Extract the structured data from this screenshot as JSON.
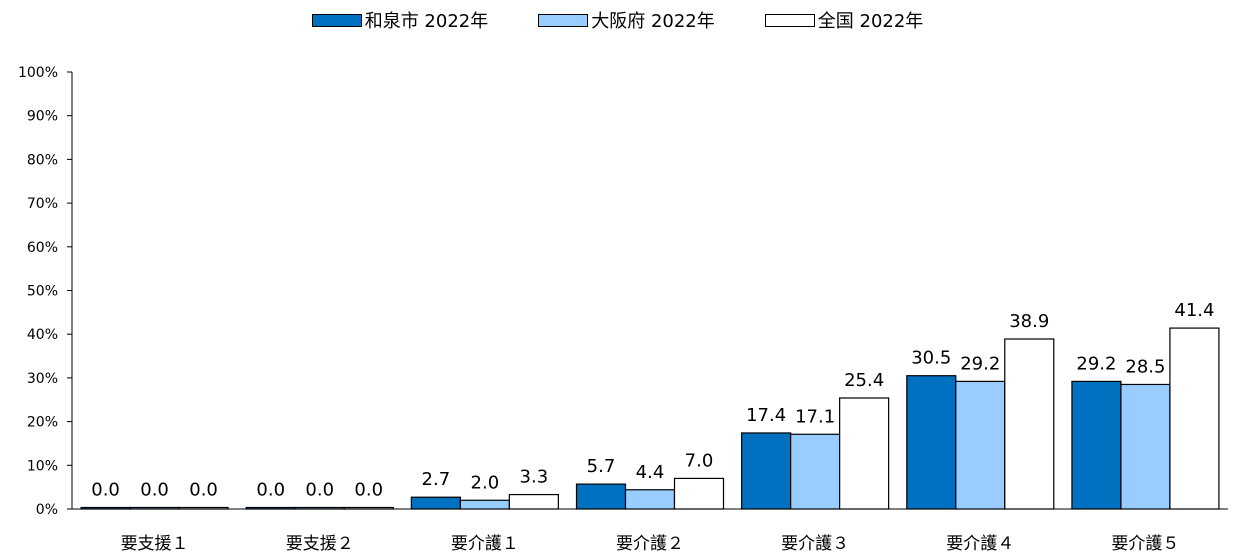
{
  "chart_data": {
    "type": "bar",
    "title": "",
    "xlabel": "",
    "ylabel": "",
    "ylim": [
      0,
      100
    ],
    "yticks": [
      "0%",
      "10%",
      "20%",
      "30%",
      "40%",
      "50%",
      "60%",
      "70%",
      "80%",
      "90%",
      "100%"
    ],
    "categories": [
      "要支援１",
      "要支援２",
      "要介護１",
      "要介護２",
      "要介護３",
      "要介護４",
      "要介護５"
    ],
    "legend_position": "top-center",
    "grid": false,
    "series": [
      {
        "name": "和泉市 2022年",
        "color": "#0070c0",
        "values": [
          0.0,
          0.0,
          2.7,
          5.7,
          17.4,
          30.5,
          29.2
        ],
        "labels": [
          "0.0",
          "0.0",
          "2.7",
          "5.7",
          "17.4",
          "30.5",
          "29.2"
        ]
      },
      {
        "name": "大阪府 2022年",
        "color": "#99ccff",
        "values": [
          0.0,
          0.0,
          2.0,
          4.4,
          17.1,
          29.2,
          28.5
        ],
        "labels": [
          "0.0",
          "0.0",
          "2.0",
          "4.4",
          "17.1",
          "29.2",
          "28.5"
        ]
      },
      {
        "name": "全国 2022年",
        "color": "#ffffff",
        "values": [
          0.0,
          0.0,
          3.3,
          7.0,
          25.4,
          38.9,
          41.4
        ],
        "labels": [
          "0.0",
          "0.0",
          "3.3",
          "7.0",
          "25.4",
          "38.9",
          "41.4"
        ]
      }
    ]
  }
}
